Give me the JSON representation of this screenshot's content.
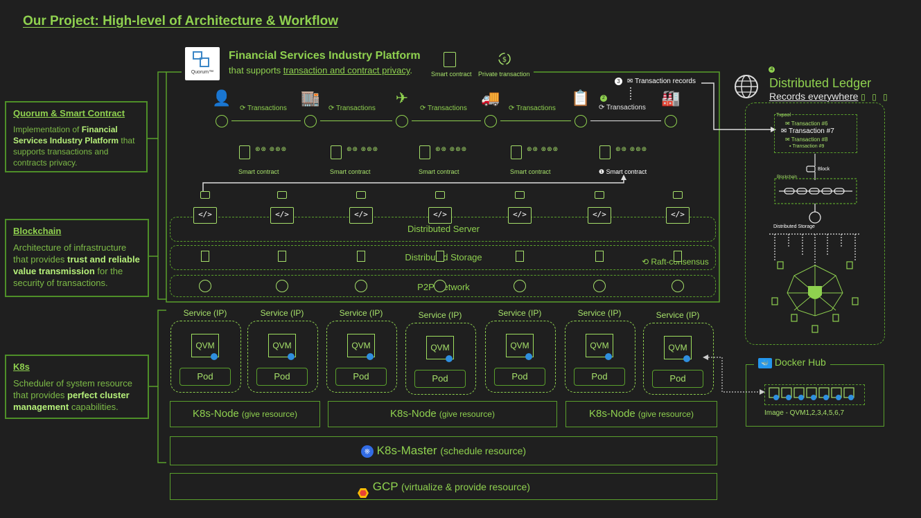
{
  "page": {
    "title": "Our Project: High-level of Architecture & Workflow"
  },
  "sidebar": {
    "quorum": {
      "heading": "Quorum & Smart Contract",
      "text_1": "Implementation of ",
      "text_bold": "Financial Services Industry Platform",
      "text_2": " that supports transactions and contracts privacy."
    },
    "blockchain": {
      "heading": "Blockchain",
      "text_1": "Architecture of infrastructure that provides ",
      "text_bold": "trust and reliable value transmission",
      "text_2": " for the security of transactions."
    },
    "k8s": {
      "heading": "K8s",
      "text_1": "Scheduler of system resource that provides ",
      "text_bold": "perfect cluster management",
      "text_2": " capabilities."
    }
  },
  "platform": {
    "logo_text": "Quorum™",
    "title": "Financial Services Industry Platform",
    "subtitle_1": "that supports ",
    "subtitle_link": "transaction and contract privacy",
    "subtitle_2": ".",
    "legend_smart_contract": "Smart contract",
    "legend_private_tx": "Private transaction",
    "transaction_records": "Transaction records",
    "transactions_label": "Transactions",
    "smart_contract_label": "Smart contract",
    "step_1": "1",
    "step_2": "2",
    "step_3": "3",
    "step_4": "4"
  },
  "layers": {
    "distributed_server": "Distributed Server",
    "distributed_storage": "Distributed Storage",
    "p2p_network": "P2P Network",
    "raft": "Raft-consensus"
  },
  "k8s": {
    "service_label": "Service (IP)",
    "qvm_label": "QVM",
    "pod_label": "Pod",
    "node_label": "K8s-Node",
    "node_sub": "(give resource)",
    "master_label": "K8s-Master",
    "master_sub": "(schedule resource)",
    "gcp_label": "GCP",
    "gcp_sub": "(virtualize & provide resource)"
  },
  "ledger": {
    "title": "Distributed Ledger",
    "subtitle": "Records everywhere",
    "txpool_label": "Txpool",
    "tx_6": "Transaction #6",
    "tx_7": "Transaction #7",
    "tx_8": "Transaction #8",
    "tx_9": "Transaction #9",
    "block_label": "Block",
    "blockchain_label": "Blockchain",
    "storage_label": "Distributed Storage"
  },
  "docker": {
    "title": "Docker Hub",
    "image_label": "Image - QVM1,2,3,4,5,6,7"
  },
  "colors": {
    "background": "#1f1f1f",
    "accent": "#8fd14f",
    "border": "#5aa02c",
    "white": "#ffffff"
  }
}
